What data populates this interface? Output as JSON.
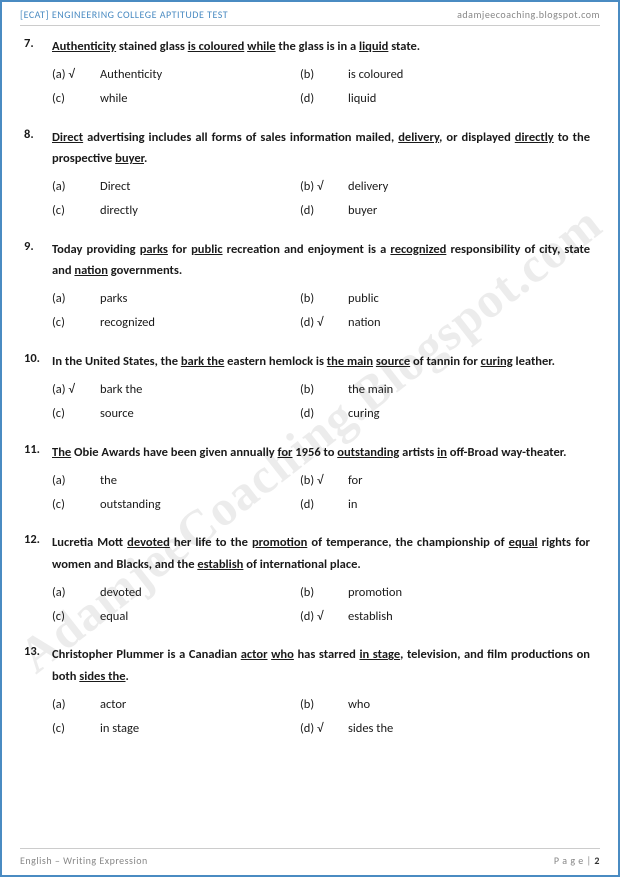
{
  "header": {
    "left": "[ECAT] ENGINEERING COLLEGE APTITUDE TEST",
    "right": "adamjeecoaching.blogspot.com"
  },
  "watermark": "AdamjeeCoaching.Blogspot.com",
  "footer": {
    "left": "English – Writing Expression",
    "right_label": "P a g e",
    "right_sep": " | ",
    "right_num": "2"
  },
  "questions": [
    {
      "num": "7.",
      "text": "<span class='u'>Authenticity</span> stained glass <span class='u'>is coloured</span> <span class='u'>while</span> the glass is in a <span class='u'>liquid</span> state.",
      "opts": [
        {
          "l": "(a) √",
          "t": "Authenticity",
          "c": true
        },
        {
          "l": "(b)",
          "t": "is coloured",
          "c": false
        },
        {
          "l": "(c)",
          "t": "while",
          "c": false
        },
        {
          "l": "(d)",
          "t": "liquid",
          "c": false
        }
      ]
    },
    {
      "num": "8.",
      "text": "<span class='u'>Direct</span> advertising includes all forms of sales information mailed, <span class='u'>delivery</span>, or displayed <span class='u'>directly</span> to the prospective <span class='u'>buyer</span>.",
      "opts": [
        {
          "l": "(a)",
          "t": "Direct",
          "c": false
        },
        {
          "l": "(b) √",
          "t": "delivery",
          "c": true
        },
        {
          "l": "(c)",
          "t": "directly",
          "c": false
        },
        {
          "l": "(d)",
          "t": "buyer",
          "c": false
        }
      ]
    },
    {
      "num": "9.",
      "text": "Today providing <span class='u'>parks</span> for <span class='u'>public</span> recreation and enjoyment is a <span class='u'>recognized</span> responsibility of city, state and <span class='u'>nation</span> governments.",
      "opts": [
        {
          "l": "(a)",
          "t": "parks",
          "c": false
        },
        {
          "l": "(b)",
          "t": "public",
          "c": false
        },
        {
          "l": "(c)",
          "t": "recognized",
          "c": false
        },
        {
          "l": "(d) √",
          "t": "nation",
          "c": true
        }
      ]
    },
    {
      "num": "10.",
      "text": "In the United States, the <span class='u'>bark the</span> eastern hemlock is <span class='u'>the main</span> <span class='u'>source</span> of tannin for <span class='u'>curing</span> leather.",
      "opts": [
        {
          "l": "(a) √",
          "t": "bark the",
          "c": true
        },
        {
          "l": "(b)",
          "t": "the main",
          "c": false
        },
        {
          "l": "(c)",
          "t": "source",
          "c": false
        },
        {
          "l": "(d)",
          "t": "curing",
          "c": false
        }
      ]
    },
    {
      "num": "11.",
      "text": "<span class='u'>The</span> Obie Awards have been given annually <span class='u'>for</span> 1956 to <span class='u'>outstanding</span> artists <span class='u'>in</span> off-Broad way-theater.",
      "opts": [
        {
          "l": "(a)",
          "t": "the",
          "c": false
        },
        {
          "l": "(b) √",
          "t": "for",
          "c": true
        },
        {
          "l": "(c)",
          "t": "outstanding",
          "c": false
        },
        {
          "l": "(d)",
          "t": "in",
          "c": false
        }
      ]
    },
    {
      "num": "12.",
      "text": "Lucretia Mott <span class='u'>devoted</span> her life to the <span class='u'>promotion</span> of temperance, the championship of <span class='u'>equal</span> rights for women and Blacks, and the <span class='u'>establish</span> of international place.",
      "opts": [
        {
          "l": "(a)",
          "t": "devoted",
          "c": false
        },
        {
          "l": "(b)",
          "t": "promotion",
          "c": false
        },
        {
          "l": "(c)",
          "t": "equal",
          "c": false
        },
        {
          "l": "(d) √",
          "t": "establish",
          "c": true
        }
      ]
    },
    {
      "num": "13.",
      "text": "Christopher Plummer is a Canadian <span class='u'>actor</span> <span class='u'>who</span> has starred <span class='u'>in stage</span>, television, and film productions on both <span class='u'>sides the</span>.",
      "opts": [
        {
          "l": "(a)",
          "t": "actor",
          "c": false
        },
        {
          "l": "(b)",
          "t": "who",
          "c": false
        },
        {
          "l": "(c)",
          "t": "in stage",
          "c": false
        },
        {
          "l": "(d) √",
          "t": "sides the",
          "c": true
        }
      ]
    }
  ]
}
